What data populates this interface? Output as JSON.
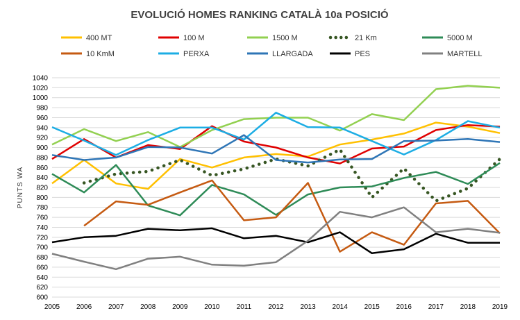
{
  "chart_data": {
    "type": "line",
    "title": "EVOLUCIÓ HOMES RANKING CATALÀ 10a POSICIÓ",
    "ylabel": "PUNTS WA",
    "xlabel": "",
    "ylim": [
      600,
      1040
    ],
    "ystep": 20,
    "grid": true,
    "legend_position": "top",
    "x": [
      "2005",
      "2006",
      "2007",
      "2008",
      "2009",
      "2010",
      "2011",
      "2012",
      "2013",
      "2014",
      "2015",
      "2016",
      "2017",
      "2018",
      "2019"
    ],
    "series": [
      {
        "name": "400 MT",
        "color": "#FFC000",
        "dash": "solid",
        "values": [
          828,
          875,
          828,
          817,
          877,
          860,
          880,
          887,
          882,
          906,
          916,
          928,
          950,
          942,
          929
        ]
      },
      {
        "name": "100 M",
        "color": "#E00000",
        "dash": "solid",
        "values": [
          877,
          917,
          880,
          905,
          897,
          943,
          912,
          900,
          880,
          868,
          898,
          902,
          935,
          945,
          942
        ]
      },
      {
        "name": "1500 M",
        "color": "#92D050",
        "dash": "solid",
        "values": [
          906,
          937,
          913,
          931,
          901,
          935,
          957,
          960,
          960,
          934,
          967,
          955,
          1017,
          1024,
          1020
        ]
      },
      {
        "name": "21 Km",
        "color": "#375623",
        "dash": "dotted",
        "values": [
          null,
          829,
          847,
          852,
          875,
          844,
          857,
          877,
          863,
          896,
          800,
          858,
          793,
          818,
          877
        ]
      },
      {
        "name": "5000 M",
        "color": "#2E8B57",
        "dash": "solid",
        "values": [
          847,
          810,
          865,
          784,
          764,
          825,
          806,
          765,
          806,
          820,
          822,
          839,
          851,
          827,
          869
        ]
      },
      {
        "name": "10 KmM",
        "color": "#C55A11",
        "dash": "solid",
        "values": [
          null,
          743,
          792,
          785,
          810,
          834,
          754,
          760,
          829,
          691,
          730,
          705,
          788,
          793,
          728
        ]
      },
      {
        "name": "PERXA",
        "color": "#1CADE4",
        "dash": "solid",
        "values": [
          941,
          914,
          885,
          915,
          940,
          940,
          916,
          970,
          941,
          940,
          913,
          886,
          915,
          953,
          940
        ]
      },
      {
        "name": "LLARGADA",
        "color": "#2E75B6",
        "dash": "solid",
        "values": [
          885,
          875,
          880,
          901,
          900,
          888,
          925,
          875,
          870,
          876,
          877,
          913,
          914,
          917,
          911
        ]
      },
      {
        "name": "PES",
        "color": "#000000",
        "dash": "solid",
        "values": [
          710,
          720,
          723,
          737,
          734,
          738,
          718,
          723,
          710,
          730,
          688,
          696,
          727,
          709,
          709
        ]
      },
      {
        "name": "MARTELL",
        "color": "#808080",
        "dash": "solid",
        "values": [
          687,
          671,
          656,
          677,
          681,
          665,
          663,
          670,
          713,
          771,
          760,
          780,
          730,
          737,
          729
        ]
      }
    ]
  }
}
